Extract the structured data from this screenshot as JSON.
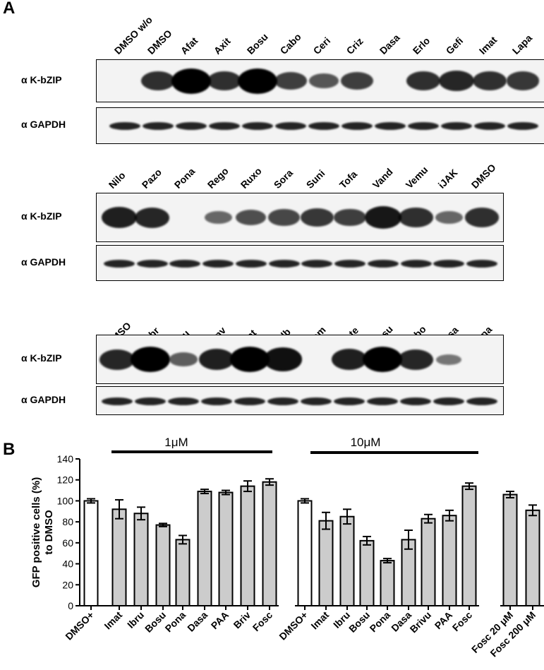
{
  "panel_a": {
    "label": "A",
    "blots": [
      {
        "lanes": [
          "DMSO w/o",
          "DMSO",
          "Afat",
          "Axit",
          "Bosu",
          "Cabo",
          "Ceri",
          "Criz",
          "Dasa",
          "Erlo",
          "Gefi",
          "Imat",
          "Lapa"
        ],
        "antibodies": [
          "α K-bZIP",
          "α GAPDH"
        ],
        "kbzip_intensity": [
          0,
          0.7,
          1.0,
          0.7,
          1.0,
          0.6,
          0.45,
          0.6,
          0,
          0.7,
          0.75,
          0.7,
          0.65
        ]
      },
      {
        "lanes": [
          "Nilo",
          "Pazo",
          "Pona",
          "Rego",
          "Ruxo",
          "Sora",
          "Suni",
          "Tofa",
          "Vand",
          "Vemu",
          "iJAK",
          "DMSO"
        ],
        "antibodies": [
          "α K-bZIP",
          "α GAPDH"
        ],
        "kbzip_intensity": [
          0.8,
          0.75,
          0,
          0.35,
          0.5,
          0.55,
          0.65,
          0.6,
          0.85,
          0.7,
          0.35,
          0.7
        ]
      },
      {
        "lanes": [
          "DMSO",
          "Dabr",
          "Ibru",
          "Lenv",
          "Nint",
          "Palb",
          "Tram",
          "Mote",
          "Bosu",
          "Cabo",
          "Dasa",
          "Pona"
        ],
        "antibodies": [
          "α K-bZIP",
          "α GAPDH"
        ],
        "kbzip_intensity": [
          0.75,
          1.0,
          0.4,
          0.8,
          1.0,
          0.9,
          0,
          0.8,
          1.0,
          0.75,
          0.25,
          0
        ]
      }
    ]
  },
  "panel_b": {
    "label": "B",
    "group_labels": [
      "1μM",
      "10μM"
    ]
  },
  "chart_data": {
    "type": "bar",
    "ylabel": "GFP positive cells (%) to DMSO",
    "ylim": [
      0,
      140
    ],
    "yticks": [
      0,
      20,
      40,
      60,
      80,
      100,
      120,
      140
    ],
    "categories": [
      "DMSO+",
      "Imat",
      "Ibru",
      "Bosu",
      "Pona",
      "Dasa",
      "PAA",
      "Briv",
      "Fosc",
      "DMSO+",
      "Imat",
      "Ibru",
      "Bosu",
      "Pona",
      "Dasa",
      "Brivu",
      "PAA",
      "Fosc",
      "Fosc 20 μM",
      "Fosc 200 μM"
    ],
    "values": [
      100,
      92,
      88,
      77,
      63,
      109,
      108,
      114,
      118,
      100,
      81,
      85,
      62,
      43,
      63,
      83,
      86,
      114,
      106,
      91
    ],
    "errors": [
      2,
      9,
      6,
      1.5,
      4,
      2,
      2,
      5,
      3,
      2,
      8,
      7,
      4,
      2,
      9,
      4,
      5,
      3,
      3,
      5
    ],
    "fill": [
      "white",
      "gray",
      "gray",
      "gray",
      "gray",
      "gray",
      "gray",
      "gray",
      "gray",
      "white",
      "gray",
      "gray",
      "gray",
      "gray",
      "gray",
      "gray",
      "gray",
      "gray",
      "gray",
      "gray"
    ],
    "colors": {
      "gray": "#cccccc",
      "white": "#ffffff",
      "stroke": "#000000"
    }
  }
}
